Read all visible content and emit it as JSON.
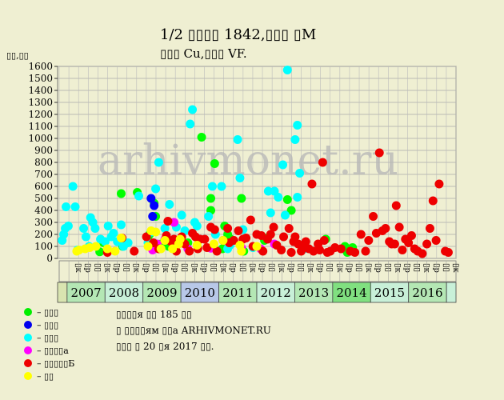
{
  "title_line_1": "1/2 ▯▯▯▯ 1842,▯▯▯ ▯M",
  "title_line_2": "▯▯▯ Cu,▯▯▯ VF.",
  "watermark": "arhivmonet.ru",
  "legend": [
    {
      "label": "– ▯▯▯",
      "color": "#00ee00"
    },
    {
      "label": "– ▯▯▯",
      "color": "#0000ee"
    },
    {
      "label": "– ▯▯▯",
      "color": "#00ffff"
    },
    {
      "label": "– ▯▯▯▯а",
      "color": "#ff00ff"
    },
    {
      "label": "– ▯▯▯▯▯Б",
      "color": "#ee0000"
    },
    {
      "label": "– ▯▯",
      "color": "#ffff00"
    }
  ],
  "notes": [
    "▯▯▯▯я ▯▯ 185 ▯▯",
    "▯ ▯▯▯▯ям ▯▯а ARHIVMONET.RU",
    "▯▯▯ ▯ 20 ▯я 2017 ▯▯."
  ],
  "chart_data": {
    "type": "scatter",
    "ylabel": "▯▯,▯▯",
    "ylim": [
      0,
      1600
    ],
    "yticks": [
      0,
      100,
      200,
      300,
      400,
      500,
      600,
      700,
      800,
      900,
      1000,
      1100,
      1200,
      1300,
      1400,
      1500,
      1600
    ],
    "grid": true,
    "quarter_labels": [
      "▯к",
      "▯р",
      "▯▯",
      "▯к",
      "▯р",
      "▯▯",
      "▯к",
      "▯р",
      "▯▯",
      "▯к",
      "▯р",
      "▯▯",
      "▯к",
      "▯р",
      "▯▯",
      "▯к",
      "▯р",
      "▯▯",
      "▯к",
      "▯р",
      "▯▯",
      "▯к",
      "▯р",
      "▯▯",
      "▯к",
      "▯р",
      "▯▯",
      "▯к",
      "▯р",
      "▯▯",
      "▯к",
      "▯р",
      "▯▯",
      "▯к",
      "▯р",
      "▯▯",
      "▯к",
      "▯р",
      "▯▯",
      "▯к"
    ],
    "years": [
      {
        "label": "",
        "span": 1,
        "color": "#d9e4b0"
      },
      {
        "label": "2007",
        "span": 4,
        "color": "#b4e7b4"
      },
      {
        "label": "2008",
        "span": 4,
        "color": "#c8f0d8"
      },
      {
        "label": "2009",
        "span": 4,
        "color": "#b4e7b4"
      },
      {
        "label": "2010",
        "span": 4,
        "color": "#b8c8e8"
      },
      {
        "label": "2011",
        "span": 4,
        "color": "#b4e7b4"
      },
      {
        "label": "2012",
        "span": 4,
        "color": "#c8f0d8"
      },
      {
        "label": "2013",
        "span": 4,
        "color": "#b4e7b4"
      },
      {
        "label": "2014",
        "span": 4,
        "color": "#80e080"
      },
      {
        "label": "2015",
        "span": 4,
        "color": "#c8f0d8"
      },
      {
        "label": "2016",
        "span": 4,
        "color": "#b4e7b4"
      },
      {
        "label": "",
        "span": 1,
        "color": "#c8f0d8"
      }
    ],
    "series": [
      {
        "color": "#00ff00",
        "points": [
          [
            5.5,
            55
          ],
          [
            6,
            130
          ],
          [
            8.3,
            540
          ],
          [
            8.5,
            100
          ],
          [
            10.4,
            550
          ],
          [
            11.8,
            180
          ],
          [
            12,
            200
          ],
          [
            12.6,
            460
          ],
          [
            12.8,
            350
          ],
          [
            13.5,
            120
          ],
          [
            14.5,
            100
          ],
          [
            16,
            150
          ],
          [
            17,
            130
          ],
          [
            18.8,
            1010
          ],
          [
            20,
            500
          ],
          [
            20,
            400
          ],
          [
            20.5,
            790
          ],
          [
            21.5,
            80
          ],
          [
            21.8,
            270
          ],
          [
            22.2,
            200
          ],
          [
            22.6,
            160
          ],
          [
            24,
            500
          ],
          [
            24.3,
            60
          ],
          [
            27,
            150
          ],
          [
            27.3,
            170
          ],
          [
            30,
            490
          ],
          [
            30.5,
            400
          ],
          [
            35,
            160
          ],
          [
            37.5,
            100
          ],
          [
            37.8,
            50
          ],
          [
            38.2,
            80
          ],
          [
            38.5,
            90
          ]
        ]
      },
      {
        "color": "#0000ff",
        "points": [
          [
            12.2,
            500
          ],
          [
            12.4,
            350
          ],
          [
            12.6,
            440
          ]
        ]
      },
      {
        "color": "#00ffff",
        "points": [
          [
            0.6,
            150
          ],
          [
            0.8,
            200
          ],
          [
            1,
            250
          ],
          [
            1.1,
            430
          ],
          [
            1.4,
            270
          ],
          [
            2.0,
            600
          ],
          [
            2.3,
            430
          ],
          [
            2.6,
            70
          ],
          [
            3.4,
            250
          ],
          [
            3.7,
            180
          ],
          [
            4.1,
            100
          ],
          [
            4.3,
            340
          ],
          [
            4.6,
            300
          ],
          [
            4.9,
            250
          ],
          [
            5.6,
            160
          ],
          [
            6.2,
            140
          ],
          [
            6.6,
            270
          ],
          [
            7,
            180
          ],
          [
            7.3,
            210
          ],
          [
            7.8,
            140
          ],
          [
            8.3,
            280
          ],
          [
            8.6,
            100
          ],
          [
            9.2,
            130
          ],
          [
            10.6,
            520
          ],
          [
            11.8,
            130
          ],
          [
            12.2,
            220
          ],
          [
            12.8,
            580
          ],
          [
            13.2,
            800
          ],
          [
            14,
            250
          ],
          [
            14.6,
            450
          ],
          [
            15.5,
            260
          ],
          [
            15.8,
            140
          ],
          [
            16.2,
            360
          ],
          [
            16.6,
            230
          ],
          [
            17.3,
            1120
          ],
          [
            17.6,
            1240
          ],
          [
            17.9,
            300
          ],
          [
            18.2,
            270
          ],
          [
            19.7,
            350
          ],
          [
            20.2,
            600
          ],
          [
            20.6,
            200
          ],
          [
            21.4,
            600
          ],
          [
            22.2,
            80
          ],
          [
            22.5,
            110
          ],
          [
            23.5,
            990
          ],
          [
            23.8,
            670
          ],
          [
            24.2,
            240
          ],
          [
            25.5,
            90
          ],
          [
            27.5,
            560
          ],
          [
            27.8,
            380
          ],
          [
            28.3,
            560
          ],
          [
            28.8,
            510
          ],
          [
            29.4,
            780
          ],
          [
            29.7,
            360
          ],
          [
            30.0,
            1570
          ],
          [
            31.0,
            990
          ],
          [
            31.3,
            1110
          ],
          [
            31.3,
            510
          ],
          [
            31.6,
            710
          ],
          [
            32.2,
            80
          ]
        ]
      },
      {
        "color": "#ff00ff",
        "points": [
          [
            12.4,
            70
          ],
          [
            13.0,
            120
          ],
          [
            14,
            160
          ],
          [
            15.2,
            300
          ],
          [
            17,
            80
          ],
          [
            20,
            85
          ],
          [
            24.0,
            90
          ],
          [
            26.5,
            80
          ],
          [
            28.3,
            120
          ]
        ]
      },
      {
        "color": "#ee0000",
        "points": [
          [
            6.5,
            50
          ],
          [
            8.4,
            170
          ],
          [
            10,
            60
          ],
          [
            11.6,
            180
          ],
          [
            12.5,
            130
          ],
          [
            13.2,
            80
          ],
          [
            14.2,
            190
          ],
          [
            14.4,
            310
          ],
          [
            14.8,
            140
          ],
          [
            15.2,
            160
          ],
          [
            15.5,
            60
          ],
          [
            16.2,
            180
          ],
          [
            16.6,
            120
          ],
          [
            17.2,
            60
          ],
          [
            17.6,
            210
          ],
          [
            18.0,
            180
          ],
          [
            18.3,
            80
          ],
          [
            18.6,
            160
          ],
          [
            19.2,
            160
          ],
          [
            19.5,
            90
          ],
          [
            20,
            260
          ],
          [
            20.5,
            240
          ],
          [
            20.8,
            60
          ],
          [
            21.6,
            150
          ],
          [
            22.2,
            250
          ],
          [
            22.4,
            130
          ],
          [
            23.0,
            150
          ],
          [
            23.6,
            230
          ],
          [
            24.2,
            160
          ],
          [
            24.6,
            170
          ],
          [
            25.2,
            320
          ],
          [
            25.5,
            100
          ],
          [
            26.0,
            200
          ],
          [
            26.6,
            190
          ],
          [
            26.8,
            60
          ],
          [
            27.4,
            160
          ],
          [
            27.8,
            200
          ],
          [
            28.2,
            260
          ],
          [
            28.6,
            110
          ],
          [
            29.2,
            70
          ],
          [
            29.5,
            180
          ],
          [
            30.2,
            250
          ],
          [
            30.5,
            50
          ],
          [
            30.8,
            140
          ],
          [
            31.0,
            180
          ],
          [
            31.4,
            120
          ],
          [
            31.8,
            60
          ],
          [
            32.0,
            90
          ],
          [
            32.4,
            140
          ],
          [
            32.8,
            80
          ],
          [
            33.2,
            620
          ],
          [
            33.4,
            60
          ],
          [
            34.0,
            120
          ],
          [
            34.2,
            70
          ],
          [
            34.6,
            800
          ],
          [
            34.8,
            150
          ],
          [
            35.2,
            50
          ],
          [
            35.6,
            60
          ],
          [
            36.2,
            90
          ],
          [
            37.0,
            80
          ],
          [
            38.2,
            60
          ],
          [
            38.8,
            50
          ],
          [
            39.6,
            200
          ],
          [
            40.2,
            60
          ],
          [
            40.6,
            150
          ],
          [
            41.2,
            350
          ],
          [
            41.6,
            210
          ],
          [
            42.0,
            880
          ],
          [
            42.4,
            230
          ],
          [
            42.8,
            250
          ],
          [
            43.3,
            140
          ],
          [
            43.6,
            120
          ],
          [
            44.0,
            120
          ],
          [
            44.2,
            440
          ],
          [
            44.6,
            260
          ],
          [
            45.0,
            70
          ],
          [
            45.4,
            160
          ],
          [
            45.8,
            130
          ],
          [
            46.2,
            190
          ],
          [
            46.6,
            80
          ],
          [
            47.0,
            60
          ],
          [
            47.6,
            40
          ],
          [
            48.2,
            120
          ],
          [
            48.6,
            250
          ],
          [
            49.0,
            480
          ],
          [
            49.4,
            150
          ],
          [
            49.8,
            620
          ],
          [
            50.6,
            60
          ],
          [
            51.0,
            50
          ]
        ]
      },
      {
        "color": "#ffff00",
        "points": [
          [
            2.5,
            60
          ],
          [
            2.8,
            70
          ],
          [
            3.6,
            80
          ],
          [
            4.2,
            90
          ],
          [
            5.0,
            100
          ],
          [
            6.5,
            80
          ],
          [
            7.5,
            60
          ],
          [
            8.3,
            170
          ],
          [
            11.8,
            100
          ],
          [
            12.2,
            230
          ],
          [
            12.8,
            220
          ],
          [
            13.5,
            80
          ],
          [
            14.0,
            150
          ],
          [
            15.0,
            80
          ],
          [
            15.8,
            120
          ],
          [
            16.0,
            160
          ],
          [
            18.2,
            110
          ],
          [
            20.4,
            120
          ],
          [
            21.6,
            150
          ],
          [
            23.8,
            110
          ],
          [
            24.0,
            60
          ],
          [
            26.0,
            100
          ]
        ]
      }
    ]
  }
}
